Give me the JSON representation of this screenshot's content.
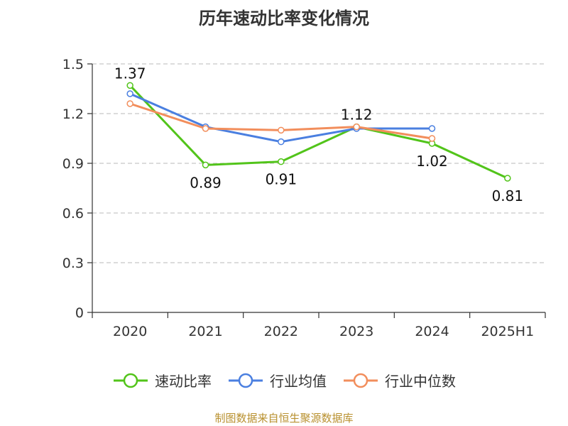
{
  "chart_data": {
    "type": "line",
    "title": "历年速动比率变化情况",
    "categories": [
      "2020",
      "2021",
      "2022",
      "2023",
      "2024",
      "2025H1"
    ],
    "ylim": [
      0,
      1.5
    ],
    "yticks": [
      "0",
      "0.3",
      "0.6",
      "0.9",
      "1.2",
      "1.5"
    ],
    "ytick_values": [
      0,
      0.3,
      0.6,
      0.9,
      1.2,
      1.5
    ],
    "grid": true,
    "legend_position": "bottom",
    "series": [
      {
        "name": "速动比率",
        "color": "#52c41a",
        "values": [
          1.37,
          0.89,
          0.91,
          1.12,
          1.02,
          0.81
        ],
        "labels": [
          "1.37",
          "0.89",
          "0.91",
          "1.12",
          "1.02",
          "0.81"
        ]
      },
      {
        "name": "行业均值",
        "color": "#4a7fe0",
        "values": [
          1.32,
          1.12,
          1.03,
          1.11,
          1.11,
          null
        ]
      },
      {
        "name": "行业中位数",
        "color": "#f28e5c",
        "values": [
          1.26,
          1.11,
          1.1,
          1.12,
          1.05,
          null
        ]
      }
    ]
  },
  "source": "制图数据来自恒生聚源数据库"
}
